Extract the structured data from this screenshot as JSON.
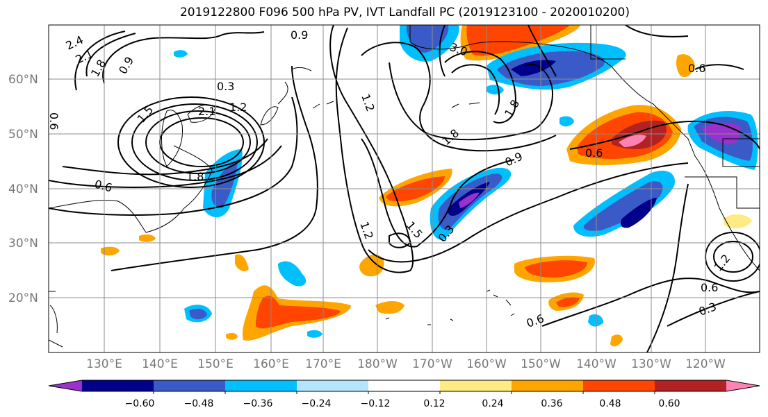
{
  "title": "2019122800 F096 500 hPa PV, IVT Landfall PC (2019123100 - 2020010200)",
  "lat_labels": [
    "60°N",
    "50°N",
    "40°N",
    "30°N",
    "20°N"
  ],
  "lon_labels": [
    "130°E",
    "140°E",
    "150°E",
    "160°E",
    "170°E",
    "180°W",
    "170°W",
    "160°W",
    "150°W",
    "140°W",
    "130°W",
    "120°W"
  ],
  "contour_labels": [
    "2.4",
    "2.1",
    "1.8",
    "0.9",
    "0.9",
    "0.3",
    "1.5",
    "2.1",
    "1.2",
    "1.8",
    "0.6",
    "3.0",
    "1.2",
    "1.8",
    "1.8",
    "0.9",
    "0.6",
    "0.6",
    "1.2",
    "1.5",
    "0.3",
    "0.6",
    "0.6",
    "0.3",
    "1.2",
    "0.6"
  ],
  "colorbar": {
    "ticks": [
      "−0.60",
      "−0.48",
      "−0.36",
      "−0.24",
      "−0.12",
      "0.12",
      "0.24",
      "0.36",
      "0.48",
      "0.60"
    ],
    "colors": [
      "#9932cc",
      "#00008b",
      "#3a5bc7",
      "#00bfff",
      "#b3e5fc",
      "#ffffff",
      "#ffeb84",
      "#ffa500",
      "#ff4500",
      "#b22222",
      "#ff82b4"
    ]
  }
}
